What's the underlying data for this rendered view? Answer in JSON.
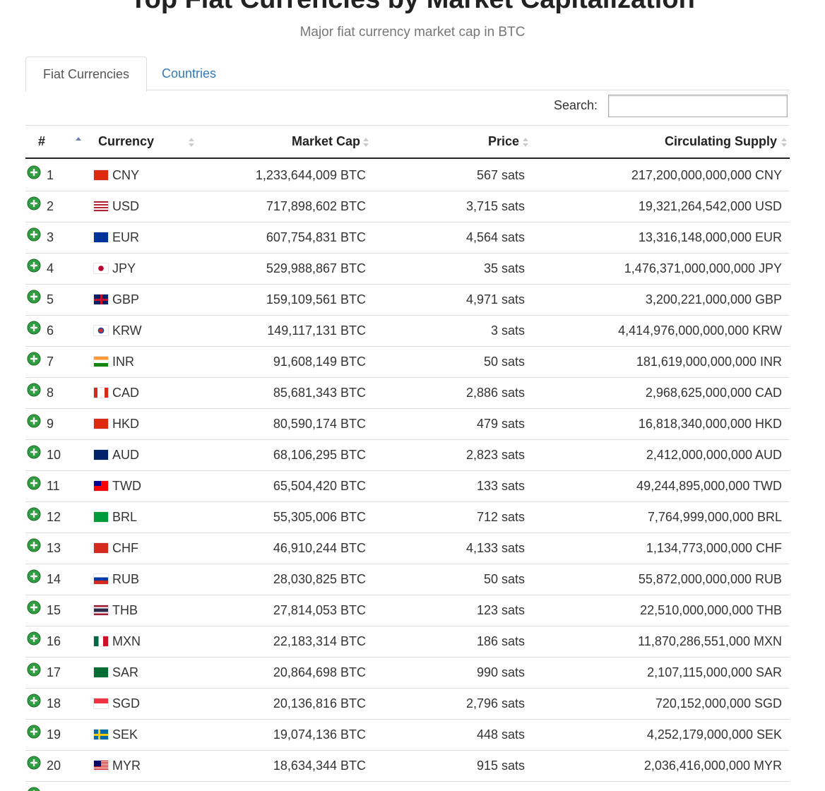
{
  "header": {
    "title": "Top Fiat Currencies by Market Capitalization",
    "subtitle": "Major fiat currency market cap in BTC"
  },
  "tabs": [
    "Fiat Currencies",
    "Countries"
  ],
  "search": {
    "label": "Search:"
  },
  "table": {
    "columns": [
      "#",
      "Currency",
      "Market Cap",
      "Price",
      "Circulating Supply"
    ],
    "rows": [
      [
        "1",
        "CNY",
        "1,233,644,009 BTC",
        "567 sats",
        "217,200,000,000,000 CNY"
      ],
      [
        "2",
        "USD",
        "717,898,602 BTC",
        "3,715 sats",
        "19,321,264,542,000 USD"
      ],
      [
        "3",
        "EUR",
        "607,754,831 BTC",
        "4,564 sats",
        "13,316,148,000,000 EUR"
      ],
      [
        "4",
        "JPY",
        "529,988,867 BTC",
        "35 sats",
        "1,476,371,000,000,000 JPY"
      ],
      [
        "5",
        "GBP",
        "159,109,561 BTC",
        "4,971 sats",
        "3,200,221,000,000 GBP"
      ],
      [
        "6",
        "KRW",
        "149,117,131 BTC",
        "3 sats",
        "4,414,976,000,000,000 KRW"
      ],
      [
        "7",
        "INR",
        "91,608,149 BTC",
        "50 sats",
        "181,619,000,000,000 INR"
      ],
      [
        "8",
        "CAD",
        "85,681,343 BTC",
        "2,886 sats",
        "2,968,625,000,000 CAD"
      ],
      [
        "9",
        "HKD",
        "80,590,174 BTC",
        "479 sats",
        "16,818,340,000,000 HKD"
      ],
      [
        "10",
        "AUD",
        "68,106,295 BTC",
        "2,823 sats",
        "2,412,000,000,000 AUD"
      ],
      [
        "11",
        "TWD",
        "65,504,420 BTC",
        "133 sats",
        "49,244,895,000,000 TWD"
      ],
      [
        "12",
        "BRL",
        "55,305,006 BTC",
        "712 sats",
        "7,764,999,000,000 BRL"
      ],
      [
        "13",
        "CHF",
        "46,910,244 BTC",
        "4,133 sats",
        "1,134,773,000,000 CHF"
      ],
      [
        "14",
        "RUB",
        "28,030,825 BTC",
        "50 sats",
        "55,872,000,000,000 RUB"
      ],
      [
        "15",
        "THB",
        "27,814,053 BTC",
        "123 sats",
        "22,510,000,000,000 THB"
      ],
      [
        "16",
        "MXN",
        "22,183,314 BTC",
        "186 sats",
        "11,870,286,551,000 MXN"
      ],
      [
        "17",
        "SAR",
        "20,864,698 BTC",
        "990 sats",
        "2,107,115,000,000 SAR"
      ],
      [
        "18",
        "SGD",
        "20,136,816 BTC",
        "2,796 sats",
        "720,152,000,000 SGD"
      ],
      [
        "19",
        "SEK",
        "19,074,136 BTC",
        "448 sats",
        "4,252,179,000,000 SEK"
      ],
      [
        "20",
        "MYR",
        "18,634,344 BTC",
        "915 sats",
        "2,036,416,000,000 MYR"
      ]
    ]
  }
}
